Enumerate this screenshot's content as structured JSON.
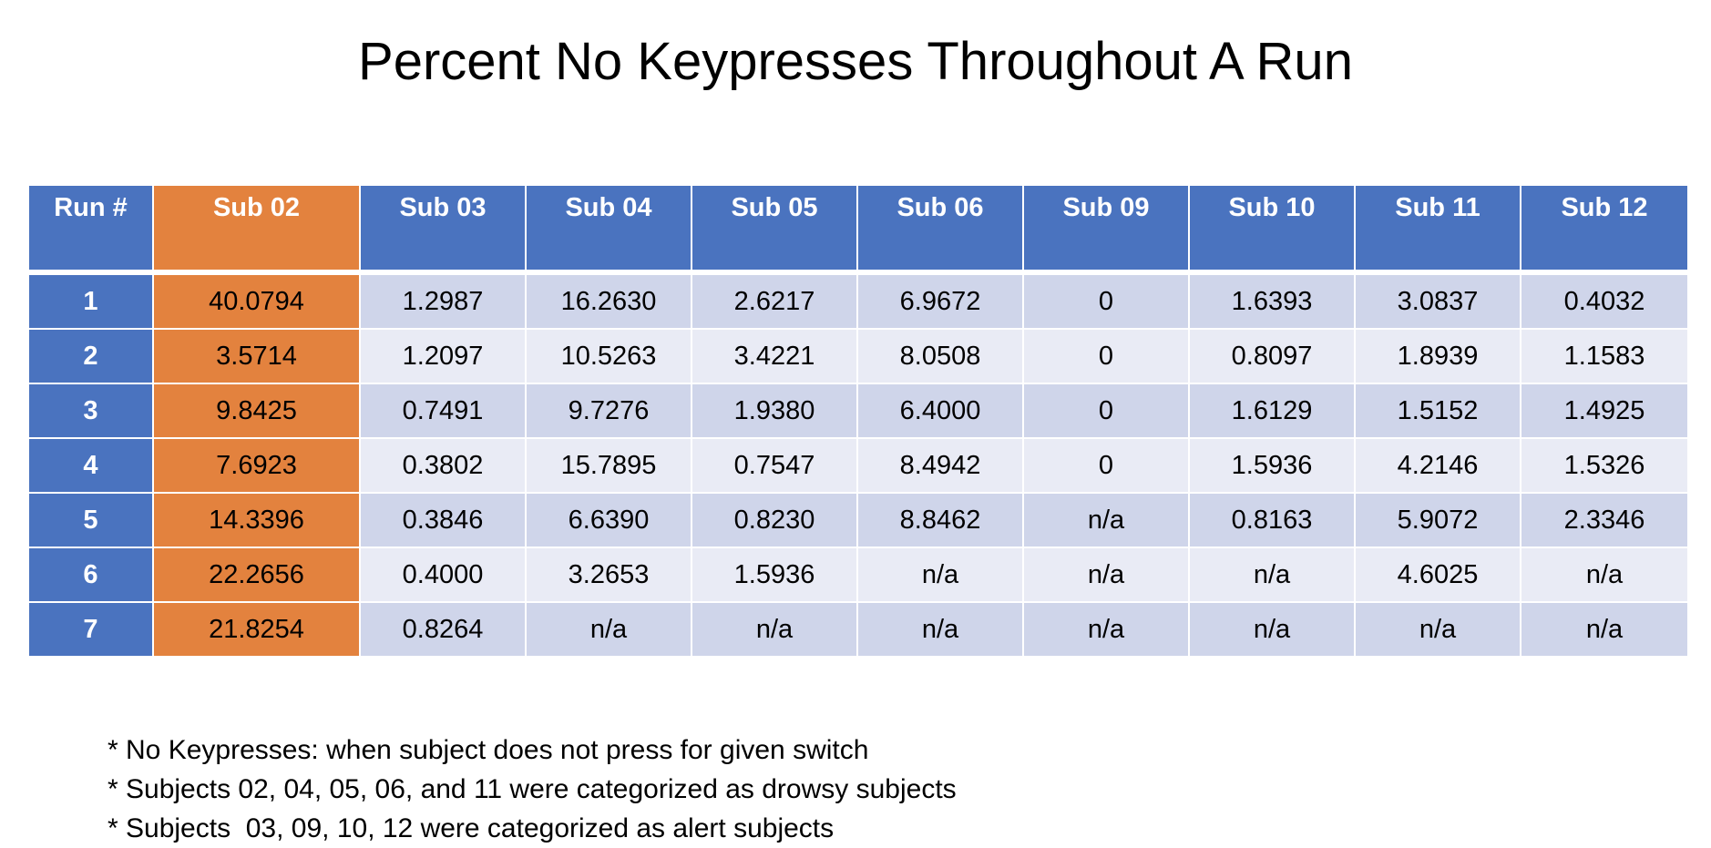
{
  "title": "Percent No Keypresses Throughout A Run",
  "table": {
    "headers": [
      "Run #",
      "Sub 02",
      "Sub 03",
      "Sub 04",
      "Sub 05",
      "Sub 06",
      "Sub 09",
      "Sub 10",
      "Sub 11",
      "Sub 12"
    ],
    "highlight_column": 1,
    "colors": {
      "header_blue": "#4a73bf",
      "highlight_orange": "#e3823e",
      "row_dark": "#cfd5ea",
      "row_light": "#e9ebf5"
    },
    "rows": [
      [
        "1",
        "40.0794",
        "1.2987",
        "16.2630",
        "2.6217",
        "6.9672",
        "0",
        "1.6393",
        "3.0837",
        "0.4032"
      ],
      [
        "2",
        "3.5714",
        "1.2097",
        "10.5263",
        "3.4221",
        "8.0508",
        "0",
        "0.8097",
        "1.8939",
        "1.1583"
      ],
      [
        "3",
        "9.8425",
        "0.7491",
        "9.7276",
        "1.9380",
        "6.4000",
        "0",
        "1.6129",
        "1.5152",
        "1.4925"
      ],
      [
        "4",
        "7.6923",
        "0.3802",
        "15.7895",
        "0.7547",
        "8.4942",
        "0",
        "1.5936",
        "4.2146",
        "1.5326"
      ],
      [
        "5",
        "14.3396",
        "0.3846",
        "6.6390",
        "0.8230",
        "8.8462",
        "n/a",
        "0.8163",
        "5.9072",
        "2.3346"
      ],
      [
        "6",
        "22.2656",
        "0.4000",
        "3.2653",
        "1.5936",
        "n/a",
        "n/a",
        "n/a",
        "4.6025",
        "n/a"
      ],
      [
        "7",
        "21.8254",
        "0.8264",
        "n/a",
        "n/a",
        "n/a",
        "n/a",
        "n/a",
        "n/a",
        "n/a"
      ]
    ]
  },
  "notes": [
    "* No Keypresses: when subject does not press for given switch",
    "* Subjects 02, 04, 05, 06, and 11 were categorized as drowsy subjects",
    "* Subjects  03, 09, 10, 12 were categorized as alert subjects"
  ]
}
